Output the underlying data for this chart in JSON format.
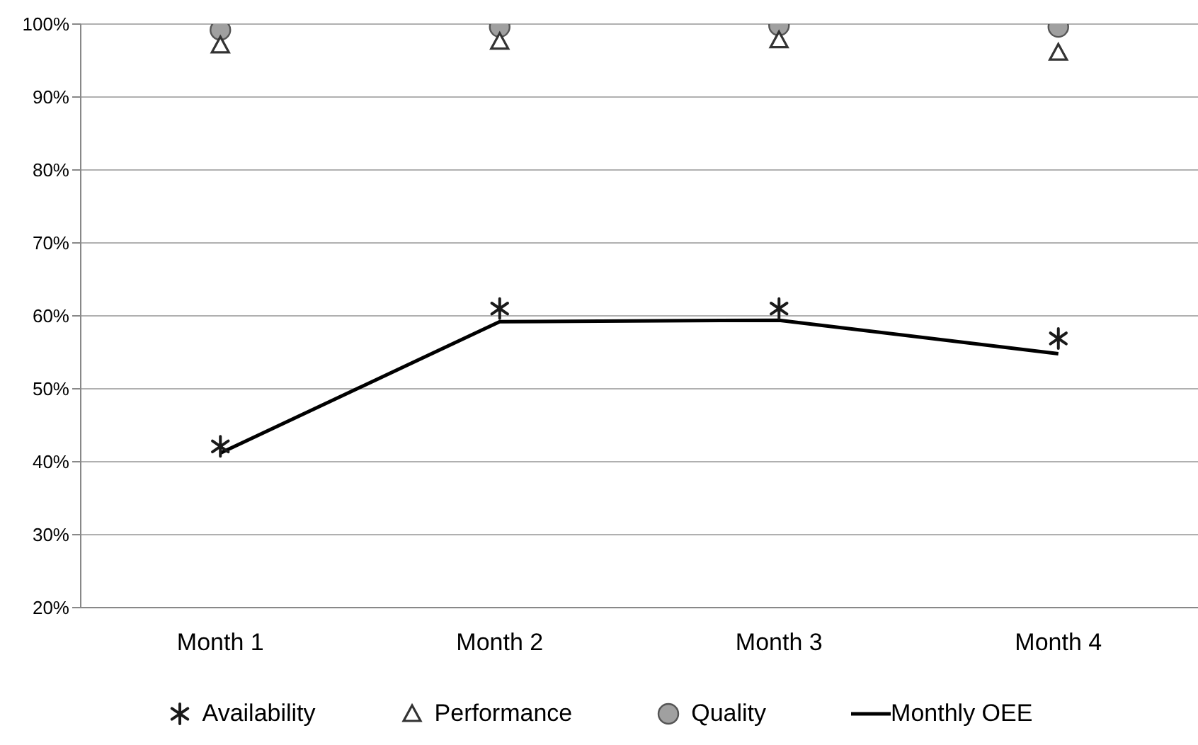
{
  "chart_data": {
    "type": "line",
    "categories": [
      "Month 1",
      "Month 2",
      "Month 3",
      "Month 4"
    ],
    "series": [
      {
        "name": "Availability",
        "type": "scatter",
        "marker": "cross",
        "color": "#1a1a1a",
        "values": [
          42.1,
          61,
          61,
          56.9
        ]
      },
      {
        "name": "Performance",
        "type": "scatter",
        "marker": "triangle",
        "color": "#333333",
        "values": [
          97.1,
          97.6,
          97.8,
          96.1
        ]
      },
      {
        "name": "Quality",
        "type": "scatter",
        "marker": "circle",
        "color": "#a0a0a0",
        "values": [
          99.2,
          99.6,
          99.8,
          99.6
        ]
      },
      {
        "name": "Monthly OEE",
        "marker": "none",
        "color": "#000000",
        "values": [
          41.2,
          59.2,
          59.4,
          54.8
        ]
      }
    ],
    "ylim": [
      20,
      100
    ],
    "yticks": [
      {
        "value": 20,
        "label": "20%"
      },
      {
        "value": 30,
        "label": "30%"
      },
      {
        "value": 40,
        "label": "40%"
      },
      {
        "value": 50,
        "label": "50%"
      },
      {
        "value": 60,
        "label": "60%"
      },
      {
        "value": 70,
        "label": "70%"
      },
      {
        "value": 80,
        "label": "80%"
      },
      {
        "value": 90,
        "label": "90%"
      },
      {
        "value": 100,
        "label": "100%"
      }
    ],
    "grid": "y",
    "legend": "bottom"
  }
}
